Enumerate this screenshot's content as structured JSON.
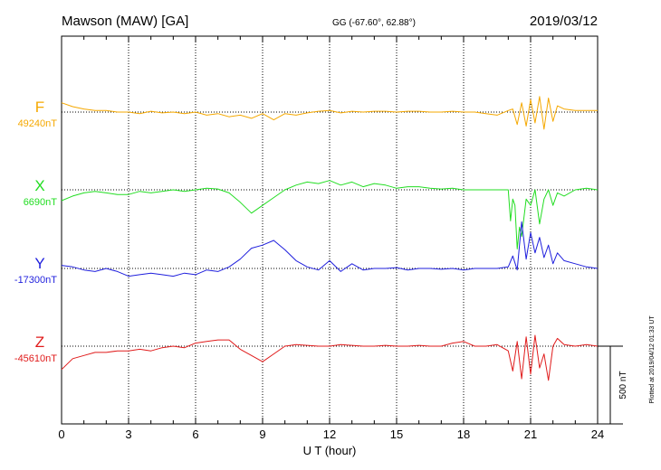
{
  "header": {
    "title": "Mawson (MAW)  [GA]",
    "coords": "GG (-67.60°,  62.88°)",
    "date": "2019/03/12"
  },
  "footer": {
    "plotted": "Plotted at 2019/04/12 01:33 UT"
  },
  "chart_data": {
    "type": "line",
    "xlabel": "U T (hour)",
    "xlim": [
      0,
      24
    ],
    "xticks": [
      0,
      3,
      6,
      9,
      12,
      15,
      18,
      21,
      24
    ],
    "x_minor_step": 1,
    "scale_bar": {
      "label": "500 nT",
      "value_nT": 500
    },
    "grid": "dotted vertical every 3 h, dotted baseline per component",
    "series": [
      {
        "name": "F",
        "baseline_label": "49240nT",
        "baseline_nT": 49240,
        "color": "#f5a800",
        "x": [
          0,
          0.5,
          1,
          1.5,
          2,
          2.5,
          3,
          3.5,
          4,
          4.5,
          5,
          5.5,
          6,
          6.5,
          7,
          7.5,
          8,
          8.5,
          9,
          9.5,
          10,
          10.5,
          11,
          11.5,
          12,
          12.5,
          13,
          13.5,
          14,
          14.5,
          15,
          15.5,
          16,
          16.5,
          17,
          17.5,
          18,
          18.5,
          19,
          19.5,
          20,
          20.2,
          20.4,
          20.6,
          20.8,
          21,
          21.2,
          21.4,
          21.6,
          21.8,
          22,
          22.2,
          22.5,
          23,
          23.5,
          24
        ],
        "y": [
          60,
          35,
          20,
          10,
          10,
          0,
          0,
          -10,
          5,
          -5,
          0,
          -10,
          0,
          -20,
          -10,
          -30,
          -20,
          -40,
          -10,
          -50,
          -10,
          -20,
          -5,
          5,
          10,
          -5,
          5,
          0,
          5,
          5,
          0,
          5,
          5,
          0,
          0,
          5,
          0,
          0,
          -10,
          -20,
          10,
          20,
          -80,
          60,
          -90,
          80,
          -70,
          100,
          -110,
          90,
          -60,
          40,
          20,
          10,
          10,
          10
        ]
      },
      {
        "name": "X",
        "baseline_label": "6690nT",
        "baseline_nT": 6690,
        "color": "#22dd22",
        "x": [
          0,
          0.5,
          1,
          1.5,
          2,
          2.5,
          3,
          3.5,
          4,
          4.5,
          5,
          5.5,
          6,
          6.5,
          7,
          7.5,
          8,
          8.5,
          9,
          9.5,
          10,
          10.5,
          11,
          11.5,
          12,
          12.5,
          13,
          13.5,
          14,
          14.5,
          15,
          15.5,
          16,
          16.5,
          17,
          17.5,
          18,
          18.5,
          19,
          19.5,
          20,
          20.1,
          20.2,
          20.3,
          20.4,
          20.5,
          20.6,
          20.8,
          21,
          21.2,
          21.4,
          21.6,
          21.8,
          22,
          22.2,
          22.5,
          23,
          23.5,
          24
        ],
        "y": [
          -70,
          -40,
          -20,
          -10,
          -20,
          -30,
          -30,
          -10,
          -20,
          -10,
          0,
          -10,
          0,
          10,
          5,
          -20,
          -80,
          -150,
          -100,
          -50,
          0,
          30,
          50,
          40,
          60,
          30,
          50,
          20,
          40,
          30,
          10,
          20,
          20,
          10,
          5,
          10,
          0,
          0,
          0,
          0,
          0,
          -200,
          -60,
          -100,
          -380,
          -240,
          -300,
          -60,
          -100,
          0,
          -220,
          -60,
          0,
          -100,
          -20,
          -40,
          0,
          10,
          0
        ]
      },
      {
        "name": "Y",
        "baseline_label": "-17300nT",
        "baseline_nT": -17300,
        "color": "#1f1fdd",
        "x": [
          0,
          0.5,
          1,
          1.5,
          2,
          2.5,
          3,
          3.5,
          4,
          4.5,
          5,
          5.5,
          6,
          6.5,
          7,
          7.5,
          8,
          8.5,
          9,
          9.5,
          10,
          10.5,
          11,
          11.5,
          12,
          12.5,
          13,
          13.5,
          14,
          14.5,
          15,
          15.5,
          16,
          16.5,
          17,
          17.5,
          18,
          18.5,
          19,
          19.5,
          20,
          20.2,
          20.4,
          20.6,
          20.8,
          21,
          21.2,
          21.4,
          21.6,
          21.8,
          22,
          22.2,
          22.5,
          23,
          23.5,
          24
        ],
        "y": [
          20,
          10,
          -10,
          -20,
          0,
          -20,
          -50,
          -40,
          -30,
          -40,
          -50,
          -30,
          -40,
          -10,
          -20,
          10,
          60,
          130,
          150,
          180,
          120,
          50,
          10,
          -10,
          50,
          -20,
          30,
          -10,
          0,
          0,
          5,
          -10,
          0,
          0,
          -5,
          0,
          -10,
          0,
          0,
          0,
          10,
          80,
          -10,
          300,
          60,
          230,
          100,
          200,
          70,
          150,
          30,
          100,
          50,
          30,
          10,
          0
        ]
      },
      {
        "name": "Z",
        "baseline_label": "-45610nT",
        "baseline_nT": -45610,
        "color": "#e01b1b",
        "x": [
          0,
          0.5,
          1,
          1.5,
          2,
          2.5,
          3,
          3.5,
          4,
          4.5,
          5,
          5.5,
          6,
          6.5,
          7,
          7.5,
          8,
          8.5,
          9,
          9.5,
          10,
          10.5,
          11,
          11.5,
          12,
          12.5,
          13,
          13.5,
          14,
          14.5,
          15,
          15.5,
          16,
          16.5,
          17,
          17.5,
          18,
          18.5,
          19,
          19.5,
          20,
          20.2,
          20.4,
          20.6,
          20.8,
          21,
          21.2,
          21.4,
          21.6,
          21.8,
          22,
          22.2,
          22.5,
          23,
          23.5,
          24
        ],
        "y": [
          -150,
          -80,
          -60,
          -40,
          -40,
          -30,
          -30,
          -20,
          -30,
          -10,
          0,
          -10,
          20,
          30,
          40,
          40,
          -20,
          -60,
          -100,
          -50,
          0,
          10,
          5,
          0,
          0,
          10,
          5,
          0,
          0,
          5,
          0,
          0,
          5,
          0,
          0,
          20,
          30,
          0,
          0,
          10,
          -30,
          -160,
          30,
          -210,
          60,
          -180,
          70,
          -140,
          -50,
          -220,
          0,
          50,
          10,
          0,
          10,
          0
        ]
      }
    ]
  }
}
